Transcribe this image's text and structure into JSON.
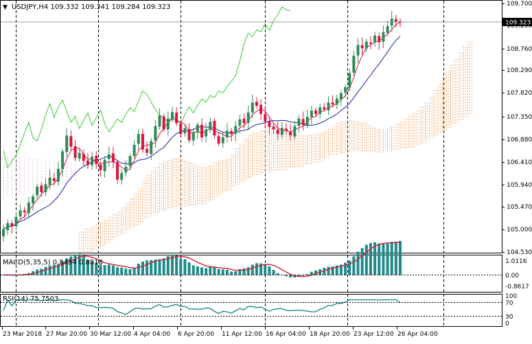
{
  "header": {
    "symbol_line": "USDJPY,H4  109.332 109.341 109.284 109.323"
  },
  "price_axis": {
    "ticks": [
      "109.700",
      "109.250",
      "108.760",
      "108.290",
      "107.820",
      "107.350",
      "106.880",
      "106.410",
      "105.940",
      "105.470",
      "105.000",
      "104.530"
    ],
    "current_price_label": "109.323"
  },
  "macd_panel": {
    "label": "MACD(5,35,5) 0.8454 0.8818",
    "ticks": [
      "1.0116",
      "0.00",
      "-0.8617"
    ]
  },
  "rsi_panel": {
    "label": "RSI(14) 75.7503",
    "ticks": [
      "100",
      "70",
      "30",
      "0"
    ]
  },
  "time_axis": {
    "labels": [
      "23 Mar 2018",
      "27 Mar 20:00",
      "30 Mar 12:00",
      "4 Apr 04:00",
      "6 Apr 20:00",
      "11 Apr 12:00",
      "16 Apr 04:00",
      "18 Apr 20:00",
      "23 Apr 12:00",
      "26 Apr 04:00"
    ]
  },
  "colors": {
    "bull_candle": "#2e8b57",
    "bear_candle": "#dc143c",
    "ma_red": "#dc143c",
    "ma_blue": "#1a1aa6",
    "chikou_green": "#33cc33",
    "ichimoku_cloud_up": "#f0a060",
    "ichimoku_cloud_down": "#d8a8c8",
    "macd_hist": "#1f8a8a",
    "macd_signal": "#cc2233",
    "rsi_line": "#1f8a8a",
    "grid": "#000000"
  },
  "chart_data": {
    "type": "candlestick",
    "symbol": "USDJPY",
    "timeframe": "H4",
    "last_bar": {
      "open": 109.332,
      "high": 109.341,
      "low": 109.284,
      "close": 109.323
    },
    "price_range": [
      104.45,
      109.75
    ],
    "close_series": [
      104.92,
      105.05,
      104.98,
      105.18,
      105.32,
      105.28,
      105.49,
      105.62,
      105.83,
      105.71,
      105.88,
      106.02,
      105.95,
      106.21,
      106.58,
      106.92,
      106.68,
      106.44,
      106.55,
      106.38,
      106.29,
      106.47,
      106.31,
      106.18,
      106.4,
      106.52,
      106.35,
      105.98,
      106.12,
      106.25,
      106.48,
      106.72,
      106.95,
      106.62,
      106.55,
      106.8,
      107.12,
      107.35,
      107.05,
      107.28,
      107.42,
      107.18,
      106.95,
      107.08,
      106.82,
      106.99,
      107.15,
      106.88,
      107.05,
      107.21,
      106.92,
      106.75,
      106.88,
      107.02,
      106.95,
      107.12,
      107.26,
      107.18,
      107.41,
      107.62,
      107.55,
      107.38,
      107.22,
      107.1,
      107.05,
      106.95,
      107.08,
      107.02,
      106.92,
      107.12,
      107.28,
      107.15,
      107.32,
      107.45,
      107.38,
      107.52,
      107.48,
      107.62,
      107.58,
      107.71,
      107.82,
      107.95,
      108.25,
      108.62,
      108.85,
      108.78,
      108.92,
      108.88,
      109.05,
      108.91,
      109.12,
      109.25,
      109.41,
      109.35,
      109.323
    ],
    "macd": {
      "current": 0.8454,
      "signal": 0.8818,
      "range": [
        -0.8617,
        1.0116
      ]
    },
    "rsi": {
      "current": 75.7503,
      "levels": [
        70,
        30
      ]
    }
  }
}
